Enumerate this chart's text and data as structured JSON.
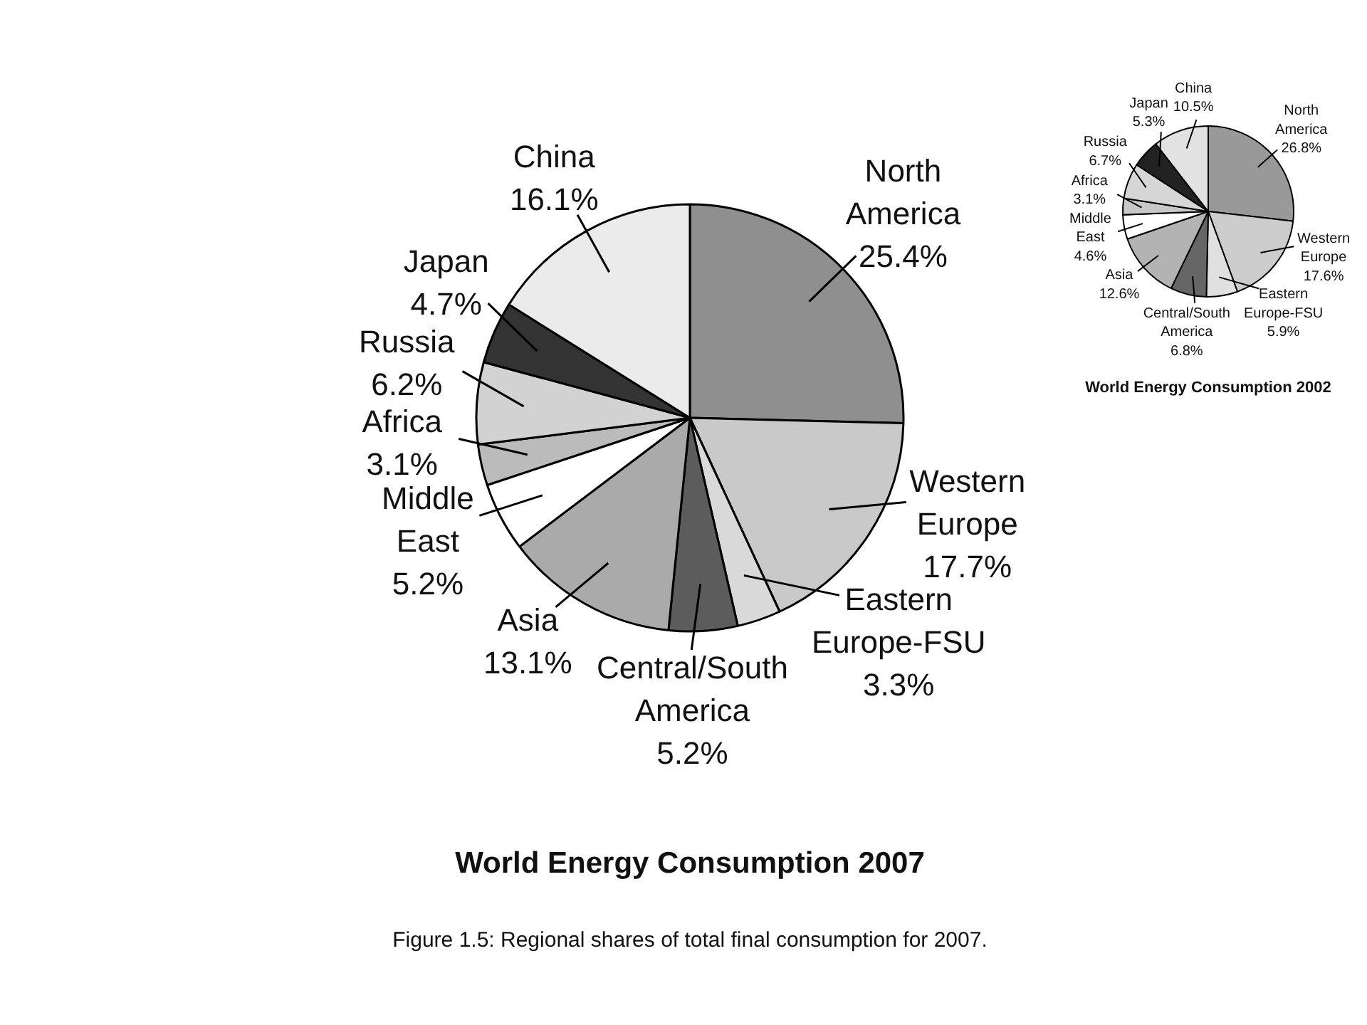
{
  "chart_data": [
    {
      "type": "pie",
      "title": "World Energy Consumption 2007",
      "categories": [
        "North\nAmerica",
        "Western\nEurope",
        "Eastern\nEurope-FSU",
        "Central/South\nAmerica",
        "Asia",
        "Middle\nEast",
        "Africa",
        "Russia",
        "Japan",
        "China"
      ],
      "values": [
        25.4,
        17.7,
        3.3,
        5.2,
        13.1,
        5.2,
        3.1,
        6.2,
        4.7,
        16.1
      ],
      "value_labels": [
        "25.4%",
        "17.7%",
        "3.3%",
        "5.2%",
        "13.1%",
        "5.2%",
        "3.1%",
        "6.2%",
        "4.7%",
        "16.1%"
      ],
      "colors": [
        "#8f8f8f",
        "#c9c9c9",
        "#d9d9d9",
        "#5c5c5c",
        "#aaaaaa",
        "#ffffff",
        "#bbbbbb",
        "#d2d2d2",
        "#333333",
        "#ebebeb"
      ],
      "annotations": [
        "Figure 1.5: Regional shares of total final consumption for 2007."
      ]
    },
    {
      "type": "pie",
      "title": "World Energy Consumption 2002",
      "categories": [
        "North\nAmerica",
        "Western\nEurope",
        "Eastern\nEurope-FSU",
        "Central/South\nAmerica",
        "Asia",
        "Middle\nEast",
        "Africa",
        "Russia",
        "Japan",
        "China"
      ],
      "values": [
        26.8,
        17.6,
        5.9,
        6.8,
        12.6,
        4.6,
        3.1,
        6.7,
        5.3,
        10.5
      ],
      "value_labels": [
        "26.8%",
        "17.6%",
        "5.9%",
        "6.8%",
        "12.6%",
        "4.6%",
        "3.1%",
        "6.7%",
        "5.3%",
        "10.5%"
      ],
      "colors": [
        "#999999",
        "#cccccc",
        "#e0e0e0",
        "#666666",
        "#b3b3b3",
        "#ffffff",
        "#c8c8c8",
        "#d6d6d6",
        "#222222",
        "#e2e2e2"
      ]
    }
  ]
}
